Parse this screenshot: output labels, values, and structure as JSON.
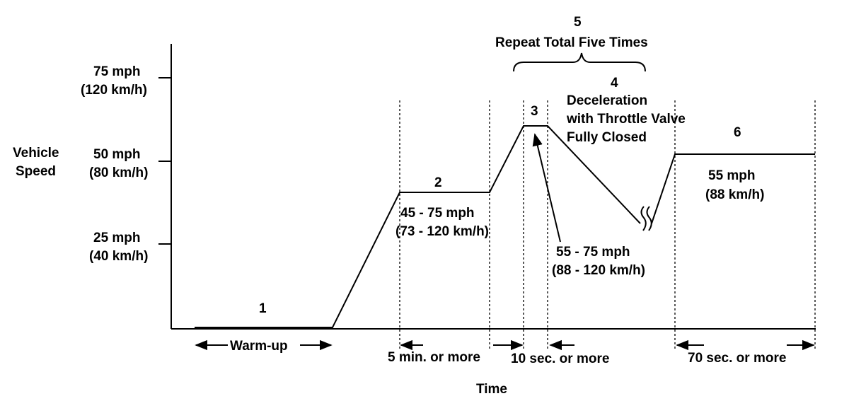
{
  "axes": {
    "y_title_line1": "Vehicle",
    "y_title_line2": "Speed",
    "x_title": "Time",
    "ticks": [
      {
        "mph": "75 mph",
        "kmh": "(120 km/h)"
      },
      {
        "mph": "50 mph",
        "kmh": "(80 km/h)"
      },
      {
        "mph": "25 mph",
        "kmh": "(40 km/h)"
      }
    ]
  },
  "steps": {
    "step1": "1",
    "step2": "2",
    "step3": "3",
    "step4": "4",
    "step5": "5",
    "step6": "6",
    "repeat_note": "Repeat Total Five Times",
    "decel_line1": "Deceleration",
    "decel_line2": "with Throttle Valve",
    "decel_line3": "Fully Closed"
  },
  "speeds": {
    "step2_mph": "45 - 75 mph",
    "step2_kmh": "(73 - 120 km/h)",
    "step3_mph": "55 - 75 mph",
    "step3_kmh": "(88 - 120 km/h)",
    "step6_mph": "55 mph",
    "step6_kmh": "(88 km/h)"
  },
  "durations": {
    "warmup": "Warm-up",
    "step2": "5 min. or more",
    "step3": "10 sec. or more",
    "step6": "70 sec. or more"
  },
  "colors": {
    "ink": "#000000",
    "background": "#ffffff"
  }
}
